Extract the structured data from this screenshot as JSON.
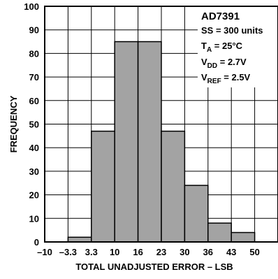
{
  "chart_data": {
    "type": "bar",
    "title": "",
    "xlabel": "TOTAL UNADJUSTED ERROR – LSB",
    "ylabel": "FREQUENCY",
    "x_tick_labels": [
      "–10",
      "–3.3",
      "3.3",
      "10",
      "16",
      "23",
      "30",
      "36",
      "43",
      "50"
    ],
    "ylim": [
      0,
      100
    ],
    "y_ticks": [
      0,
      10,
      20,
      30,
      40,
      50,
      60,
      70,
      80,
      90,
      100
    ],
    "grid": true,
    "bins": [
      {
        "from": -10,
        "to": -3.3,
        "value": 0
      },
      {
        "from": -3.3,
        "to": 3.3,
        "value": 2
      },
      {
        "from": 3.3,
        "to": 10,
        "value": 47
      },
      {
        "from": 10,
        "to": 16,
        "value": 85
      },
      {
        "from": 16,
        "to": 23,
        "value": 85
      },
      {
        "from": 23,
        "to": 30,
        "value": 47
      },
      {
        "from": 30,
        "to": 36,
        "value": 24
      },
      {
        "from": 36,
        "to": 43,
        "value": 8
      },
      {
        "from": 43,
        "to": 50,
        "value": 4
      }
    ],
    "bar_color": "#a3a3a3",
    "annotation": {
      "title": "AD7391",
      "lines": [
        {
          "main": "SS = 300 units"
        },
        {
          "main": "T",
          "sub": "A",
          "rest": " = 25°C"
        },
        {
          "main": "V",
          "sub": "DD",
          "rest": " = 2.7V"
        },
        {
          "main": "V",
          "sub": "REF",
          "rest": " = 2.5V"
        }
      ]
    }
  }
}
